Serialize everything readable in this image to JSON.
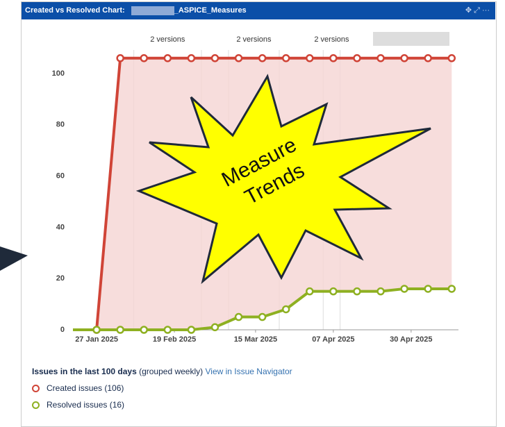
{
  "header": {
    "title": "Created vs Resolved Chart:",
    "title_suffix": "_ASPICE_Measures"
  },
  "chart_data": {
    "type": "line",
    "x": [
      "2025-01-20",
      "2025-01-27",
      "2025-02-03",
      "2025-02-10",
      "2025-02-17",
      "2025-02-24",
      "2025-03-03",
      "2025-03-10",
      "2025-03-17",
      "2025-03-24",
      "2025-03-31",
      "2025-04-07",
      "2025-04-14",
      "2025-04-21",
      "2025-04-28",
      "2025-05-05",
      "2025-05-12"
    ],
    "series": [
      {
        "name": "Created issues (106)",
        "color": "#d04437",
        "values": [
          null,
          0,
          106,
          106,
          106,
          106,
          106,
          106,
          106,
          106,
          106,
          106,
          106,
          106,
          106,
          106,
          106
        ]
      },
      {
        "name": "Resolved issues (16)",
        "color": "#8eb021",
        "values": [
          0,
          0,
          0,
          0,
          0,
          0,
          1,
          5,
          5,
          8,
          15,
          15,
          15,
          15,
          16,
          16,
          16
        ]
      }
    ],
    "area_color": "#f5d5d3",
    "xlim": [
      "2025-01-20",
      "2025-05-14"
    ],
    "xticks": [
      {
        "value": "2025-01-27",
        "label": "27 Jan 2025"
      },
      {
        "value": "2025-02-19",
        "label": "19 Feb 2025"
      },
      {
        "value": "2025-03-15",
        "label": "15 Mar 2025"
      },
      {
        "value": "2025-04-07",
        "label": "07 Apr 2025"
      },
      {
        "value": "2025-04-30",
        "label": "30 Apr 2025"
      }
    ],
    "ylim": [
      0,
      110
    ],
    "yticks": [
      0,
      20,
      40,
      60,
      80,
      100
    ],
    "versions": [
      {
        "label": "2 versions",
        "x": [
          "2025-02-07",
          "2025-02-27"
        ]
      },
      {
        "label": "2 versions",
        "x": [
          "2025-03-07",
          "2025-03-22"
        ]
      },
      {
        "label": "2 versions",
        "x": [
          "2025-04-04",
          "2025-04-09"
        ]
      }
    ],
    "callout": [
      "Measure",
      "Trends"
    ]
  },
  "footer": {
    "period": "Issues in the last 100 days",
    "grouping": "(grouped weekly)",
    "link": "View in Issue Navigator"
  }
}
